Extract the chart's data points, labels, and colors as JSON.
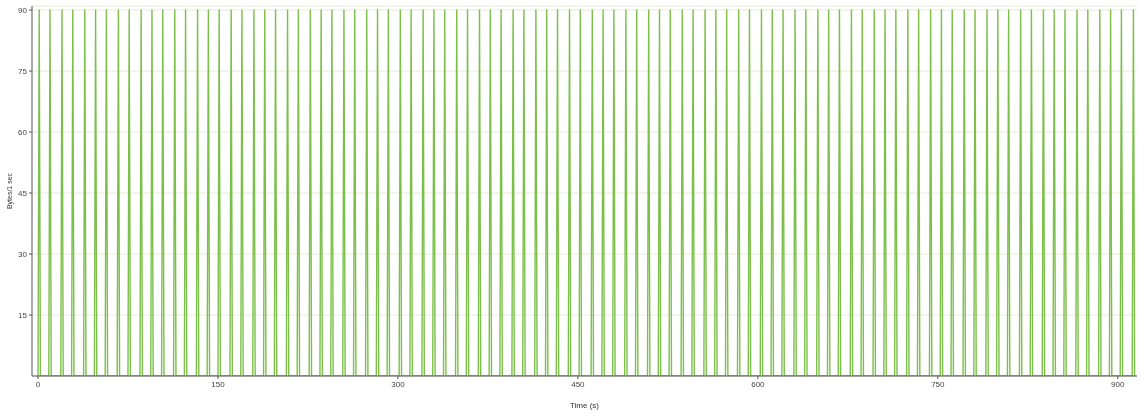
{
  "chart_data": {
    "type": "line",
    "xlabel": "Time (s)",
    "ylabel": "Bytes/1 sec",
    "xlim": [
      -5,
      916
    ],
    "xticks": [
      0,
      150,
      300,
      450,
      600,
      750,
      900
    ],
    "ylim": [
      0,
      91
    ],
    "yticks": [
      15,
      30,
      45,
      60,
      75,
      90
    ],
    "grid": "y",
    "marker": "none",
    "line_style": "solid",
    "series": [
      {
        "color": "#7cbf4a",
        "x": [
          0,
          1,
          2,
          9,
          10,
          11,
          19,
          20,
          21,
          28,
          29,
          30,
          38,
          39,
          40,
          47,
          48,
          49,
          56,
          57,
          58,
          66,
          67,
          68,
          75,
          76,
          77,
          85,
          86,
          87,
          94,
          95,
          96,
          103,
          104,
          105,
          113,
          114,
          115,
          122,
          123,
          124,
          132,
          133,
          134,
          141,
          142,
          143,
          150,
          151,
          152,
          160,
          161,
          162,
          169,
          170,
          171,
          179,
          180,
          181,
          188,
          189,
          190,
          197,
          198,
          199,
          207,
          208,
          209,
          216,
          217,
          218,
          226,
          227,
          228,
          235,
          236,
          237,
          244,
          245,
          246,
          254,
          255,
          256,
          263,
          264,
          265,
          273,
          274,
          275,
          282,
          283,
          284,
          291,
          292,
          293,
          301,
          302,
          303,
          310,
          311,
          312,
          320,
          321,
          322,
          329,
          330,
          331,
          338,
          339,
          340,
          348,
          349,
          350,
          357,
          358,
          359,
          367,
          368,
          369,
          376,
          377,
          378,
          385,
          386,
          387,
          395,
          396,
          397,
          404,
          405,
          406,
          414,
          415,
          416,
          423,
          424,
          425,
          432,
          433,
          434,
          442,
          443,
          444,
          451,
          452,
          453,
          461,
          462,
          463,
          470,
          471,
          472,
          479,
          480,
          481,
          489,
          490,
          491,
          498,
          499,
          500,
          508,
          509,
          510,
          517,
          518,
          519,
          526,
          527,
          528,
          536,
          537,
          538,
          545,
          546,
          547,
          555,
          556,
          557,
          564,
          565,
          566,
          573,
          574,
          575,
          583,
          584,
          585,
          592,
          593,
          594,
          602,
          603,
          604,
          611,
          612,
          613,
          620,
          621,
          622,
          630,
          631,
          632,
          639,
          640,
          641,
          649,
          650,
          651,
          658,
          659,
          660,
          667,
          668,
          669,
          677,
          678,
          679,
          686,
          687,
          688,
          696,
          697,
          698,
          705,
          706,
          707,
          714,
          715,
          716,
          724,
          725,
          726,
          733,
          734,
          735,
          743,
          744,
          745,
          752,
          753,
          754,
          761,
          762,
          763,
          771,
          772,
          773,
          780,
          781,
          782,
          790,
          791,
          792,
          799,
          800,
          801,
          808,
          809,
          810,
          818,
          819,
          820,
          827,
          828,
          829,
          837,
          838,
          839,
          846,
          847,
          848,
          855,
          856,
          857,
          865,
          866,
          867,
          874,
          875,
          876,
          884,
          885,
          886,
          893,
          894,
          895,
          902,
          903,
          904,
          912,
          913,
          914
        ],
        "values": [
          0,
          90,
          0,
          0,
          90,
          0,
          0,
          90,
          0,
          0,
          90,
          0,
          0,
          90,
          0,
          0,
          90,
          0,
          0,
          90,
          0,
          0,
          90,
          0,
          0,
          90,
          0,
          0,
          90,
          0,
          0,
          90,
          0,
          0,
          90,
          0,
          0,
          90,
          0,
          0,
          90,
          0,
          0,
          90,
          0,
          0,
          90,
          0,
          0,
          90,
          0,
          0,
          90,
          0,
          0,
          90,
          0,
          0,
          90,
          0,
          0,
          90,
          0,
          0,
          90,
          0,
          0,
          90,
          0,
          0,
          90,
          0,
          0,
          90,
          0,
          0,
          90,
          0,
          0,
          90,
          0,
          0,
          90,
          0,
          0,
          90,
          0,
          0,
          90,
          0,
          0,
          90,
          0,
          0,
          90,
          0,
          0,
          90,
          0,
          0,
          90,
          0,
          0,
          90,
          0,
          0,
          90,
          0,
          0,
          90,
          0,
          0,
          90,
          0,
          0,
          90,
          0,
          0,
          90,
          0,
          0,
          90,
          0,
          0,
          90,
          0,
          0,
          90,
          0,
          0,
          90,
          0,
          0,
          90,
          0,
          0,
          90,
          0,
          0,
          90,
          0,
          0,
          90,
          0,
          0,
          90,
          0,
          0,
          90,
          0,
          0,
          90,
          0,
          0,
          90,
          0,
          0,
          90,
          0,
          0,
          90,
          0,
          0,
          90,
          0,
          0,
          90,
          0,
          0,
          90,
          0,
          0,
          90,
          0,
          0,
          90,
          0,
          0,
          90,
          0,
          0,
          90,
          0,
          0,
          90,
          0,
          0,
          90,
          0,
          0,
          90,
          0,
          0,
          90,
          0,
          0,
          90,
          0,
          0,
          90,
          0,
          0,
          90,
          0,
          0,
          90,
          0,
          0,
          90,
          0,
          0,
          90,
          0,
          0,
          90,
          0,
          0,
          90,
          0,
          0,
          90,
          0,
          0,
          90,
          0,
          0,
          90,
          0,
          0,
          90,
          0,
          0,
          90,
          0,
          0,
          90,
          0,
          0,
          90,
          0,
          0,
          90,
          0,
          0,
          90,
          0,
          0,
          90,
          0,
          0,
          90,
          0,
          0,
          90,
          0,
          0,
          90,
          0,
          0,
          90,
          0,
          0,
          90,
          0,
          0,
          90,
          0,
          0,
          90,
          0,
          0,
          90,
          0,
          0,
          90,
          0,
          0,
          90,
          0,
          0,
          90,
          0,
          0,
          90,
          0,
          0,
          90,
          0,
          0,
          90,
          0,
          0,
          90,
          0
        ]
      }
    ]
  }
}
